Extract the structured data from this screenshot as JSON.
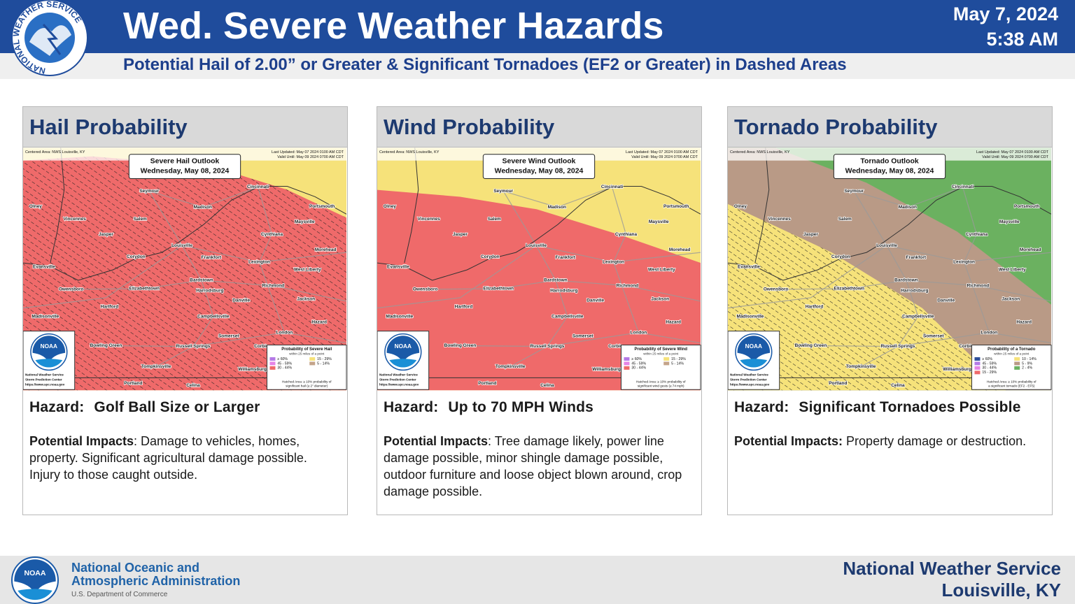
{
  "header": {
    "logo_text": "NATIONAL WEATHER SERVICE",
    "title": "Wed. Severe Weather Hazards",
    "subtitle": "Potential Hail of 2.00” or Greater & Significant Tornadoes (EF2 or Greater) in Dashed Areas",
    "date": "May 7, 2024",
    "time": "5:38 AM"
  },
  "map_common": {
    "centered": "Centered Area: NWS Louisville, KY",
    "updated": "Last Updated: May 07 2024 0100 AM CDT",
    "valid": "Valid Until: May 09 2024 0700 AM CDT",
    "outlook_date": "Wednesday, May 08, 2024",
    "legend_subtitle": "within 25 miles of a point",
    "noaa_logo": "NOAA",
    "credit": [
      "National Weather Service",
      "Storm Prediction Center",
      "https://www.spc.noaa.gov"
    ],
    "cities": [
      "Olney",
      "Vincennes",
      "Jasper",
      "Seymour",
      "Salem",
      "Madison",
      "Cincinnati",
      "Portsmouth",
      "Maysville",
      "Cynthiana",
      "Louisville",
      "Corydon",
      "Frankfort",
      "Lexington",
      "Morehead",
      "Evansville",
      "West Liberty",
      "Owensboro",
      "Elizabethtown",
      "Bardstown",
      "Harrodsburg",
      "Richmond",
      "Danville",
      "Jackson",
      "Hartford",
      "Madisonville",
      "Campbellsville",
      "Hazard",
      "London",
      "Somerset",
      "Bowling Green",
      "Russell Springs",
      "Corbin",
      "Tompkinsville",
      "Williamsburg",
      "Portland",
      "Celina"
    ]
  },
  "panels": [
    {
      "title": "Hail Probability",
      "outlook_title": "Severe Hail Outlook",
      "legend_title": "Probability of Severe Hail",
      "legend_items": [
        {
          "label": "≥ 60%",
          "color": "#b47ae6"
        },
        {
          "label": "45 - 59%",
          "color": "#e684e6"
        },
        {
          "label": "30 - 44%",
          "color": "#ef6a6a"
        },
        {
          "label": "15 - 29%",
          "color": "#f6e27a"
        },
        {
          "label": "5 - 14%",
          "color": "#c4a48a"
        }
      ],
      "hatch_note": "Hatched Area: ≥ 10% probability of significant hail (≥ 2\" diameter)",
      "hazard_label": "Hazard:",
      "hazard": "Golf Ball Size or Larger",
      "impacts_label": "Potential Impacts",
      "impacts": ": Damage to vehicles, homes, property. Significant agricultural damage possible. Injury to those caught outside."
    },
    {
      "title": "Wind Probability",
      "outlook_title": "Severe Wind Outlook",
      "legend_title": "Probability of Severe Wind",
      "legend_items": [
        {
          "label": "≥ 60%",
          "color": "#b47ae6"
        },
        {
          "label": "45 - 59%",
          "color": "#e684e6"
        },
        {
          "label": "30 - 44%",
          "color": "#ef6a6a"
        },
        {
          "label": "15 - 29%",
          "color": "#f6e27a"
        },
        {
          "label": "5 - 14%",
          "color": "#c4a48a"
        }
      ],
      "hatch_note": "Hatched Area: ≥ 10% probability of significant wind gusts (≥ 74 mph)",
      "hazard_label": "Hazard:",
      "hazard": "Up to 70 MPH Winds",
      "impacts_label": "Potential Impacts",
      "impacts": ": Tree damage likely, power line damage possible, minor shingle damage possible, outdoor furniture and loose object blown around, crop damage possible."
    },
    {
      "title": "Tornado Probability",
      "outlook_title": "Tornado Outlook",
      "legend_title": "Probability of a Tornado",
      "legend_items": [
        {
          "label": "≥ 60%",
          "color": "#2f4f9a"
        },
        {
          "label": "45 - 59%",
          "color": "#b47ae6"
        },
        {
          "label": "30 - 44%",
          "color": "#e684e6"
        },
        {
          "label": "15 - 29%",
          "color": "#ef6a6a"
        },
        {
          "label": "10 - 14%",
          "color": "#f6e27a"
        },
        {
          "label": "5 - 9%",
          "color": "#b99a86"
        },
        {
          "label": "2 - 4%",
          "color": "#6bb160"
        }
      ],
      "hatch_note": "Hatched Area: ≥ 10% probability of a significant tornado (EF2 - EF5)",
      "hazard_label": "Hazard:",
      "hazard": "Significant Tornadoes Possible",
      "impacts_label": "Potential Impacts:",
      "impacts": "Property damage or destruction."
    }
  ],
  "footer": {
    "agency_line1": "National Oceanic and",
    "agency_line2": "Atmospheric Administration",
    "department": "U.S. Department of Commerce",
    "office": "National Weather Service",
    "location": "Louisville, KY"
  }
}
